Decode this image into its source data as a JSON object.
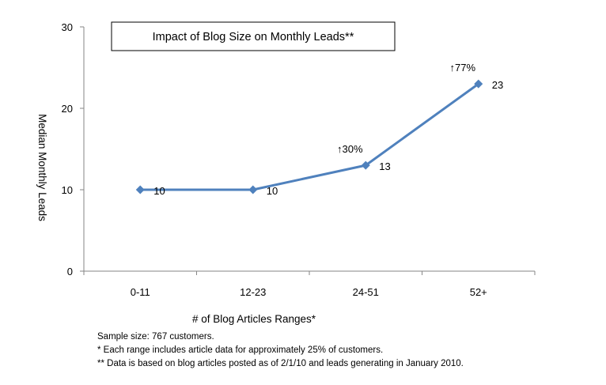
{
  "chart_data": {
    "type": "line",
    "title": "Impact of Blog Size on Monthly Leads**",
    "xlabel": "# of Blog Articles Ranges*",
    "ylabel": "Median Monthly Leads",
    "categories": [
      "0-11",
      "12-23",
      "24-51",
      "52+"
    ],
    "series": [
      {
        "values": [
          10,
          10,
          13,
          23
        ],
        "color": "#4f81bd"
      }
    ],
    "data_labels": [
      "10",
      "10",
      "13",
      "23"
    ],
    "annotations": [
      {
        "category": "24-51",
        "text": "↑30%"
      },
      {
        "category": "52+",
        "text": "↑77%"
      }
    ],
    "ylim": [
      0,
      30
    ],
    "yticks": [
      0,
      10,
      20,
      30
    ],
    "grid": false,
    "legend": "none"
  },
  "notes": {
    "sample_size": "Sample size: 767 customers.",
    "note1": "*  Each range includes article data for approximately 25% of customers.",
    "note2": "** Data is based on blog articles posted as of 2/1/10 and leads generating in January 2010."
  }
}
